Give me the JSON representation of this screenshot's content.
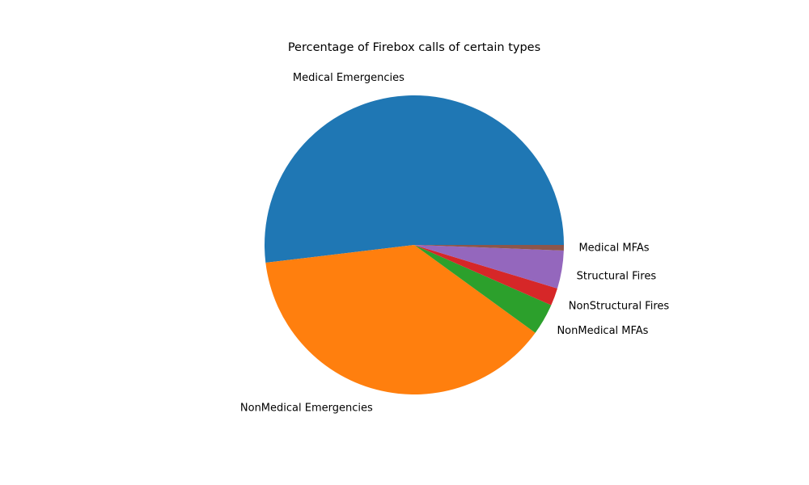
{
  "chart_data": {
    "type": "pie",
    "title": "Percentage of Firebox calls of certain types",
    "start_angle_deg": 0,
    "direction": "counterclockwise",
    "slices": [
      {
        "label": "Medical Emergencies",
        "value": 51.9,
        "color": "#1f77b4"
      },
      {
        "label": "NonMedical Emergencies",
        "value": 38.1,
        "color": "#ff7f0e"
      },
      {
        "label": "NonMedical MFAs",
        "value": 3.4,
        "color": "#2ca02c"
      },
      {
        "label": "NonStructural Fires",
        "value": 1.9,
        "color": "#d62728"
      },
      {
        "label": "Structural Fires",
        "value": 4.1,
        "color": "#9467bd"
      },
      {
        "label": "Medical MFAs",
        "value": 0.6,
        "color": "#8c564b"
      }
    ],
    "legend": "none"
  }
}
